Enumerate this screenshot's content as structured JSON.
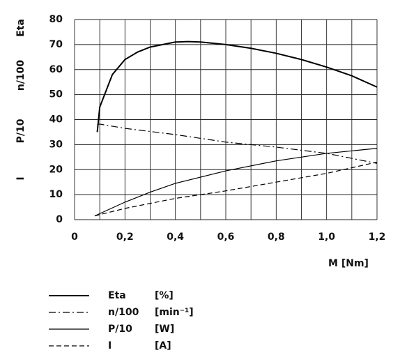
{
  "chart_data": {
    "type": "line",
    "ylabels": [
      "Eta",
      "n/100",
      "P/10",
      "I"
    ],
    "xlabel": "M [Nm]",
    "xlim": [
      0,
      1.2
    ],
    "ylim": [
      0,
      80
    ],
    "xticks": [
      0,
      {
        "value": 0.2,
        "label": "0,2"
      },
      {
        "value": 0.4,
        "label": "0,4"
      },
      {
        "value": 0.6,
        "label": "0,6"
      },
      {
        "value": 0.8,
        "label": "0,8"
      },
      {
        "value": 1.0,
        "label": "1,0"
      },
      {
        "value": 1.2,
        "label": "1,2"
      }
    ],
    "yticks": [
      0,
      10,
      20,
      30,
      40,
      50,
      60,
      70,
      80
    ],
    "grid": true,
    "series": [
      {
        "name": "Eta",
        "unit": "[%]",
        "color": "#000000",
        "dash": "solid",
        "width": 2,
        "x": [
          0.09,
          0.1,
          0.15,
          0.2,
          0.25,
          0.3,
          0.4,
          0.45,
          0.5,
          0.6,
          0.7,
          0.8,
          0.9,
          1.0,
          1.1,
          1.2
        ],
        "values": [
          35,
          45,
          58,
          64,
          67,
          69,
          71,
          71.2,
          71,
          70,
          68.5,
          66.5,
          64,
          61,
          57.5,
          53
        ]
      },
      {
        "name": "n/100",
        "unit": "[min⁻¹]",
        "color": "#000000",
        "dash": "dashdot",
        "width": 1.2,
        "x": [
          0.09,
          0.1,
          0.2,
          0.4,
          0.6,
          0.8,
          1.0,
          1.2
        ],
        "values": [
          38,
          38.2,
          36.5,
          34,
          31,
          29,
          26.5,
          22.5
        ]
      },
      {
        "name": "P/10",
        "unit": "[W]",
        "color": "#000000",
        "dash": "solid",
        "width": 1.2,
        "x": [
          0.08,
          0.2,
          0.3,
          0.4,
          0.6,
          0.8,
          1.0,
          1.2
        ],
        "values": [
          1.5,
          7,
          11,
          14.5,
          19.5,
          23.5,
          26.5,
          28.5
        ]
      },
      {
        "name": "I",
        "unit": "[A]",
        "color": "#000000",
        "dash": "dash",
        "width": 1.2,
        "x": [
          0.08,
          0.2,
          0.3,
          0.4,
          0.6,
          0.8,
          1.0,
          1.2
        ],
        "values": [
          1.5,
          4.5,
          6.5,
          8.5,
          11.5,
          15,
          18.5,
          23
        ]
      }
    ]
  }
}
